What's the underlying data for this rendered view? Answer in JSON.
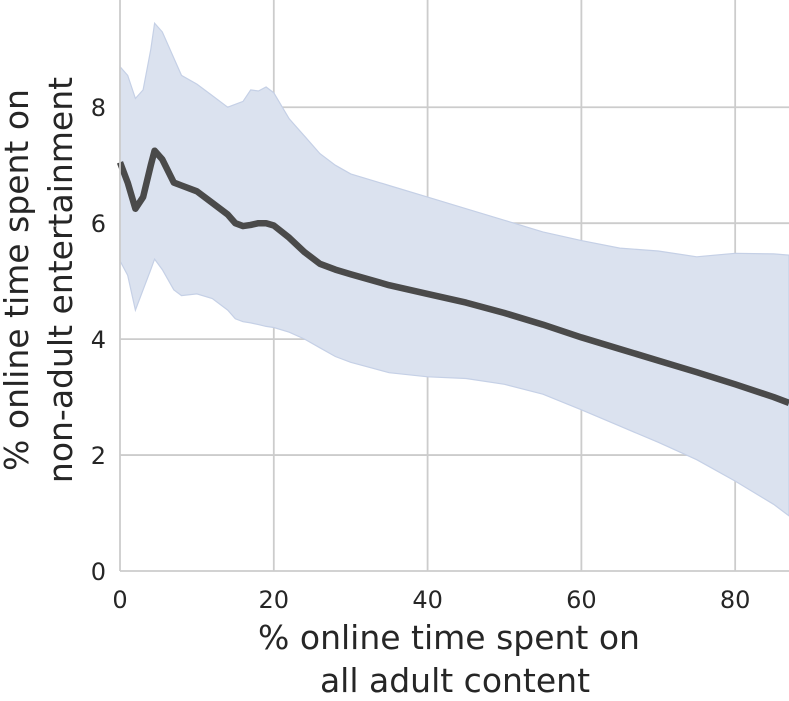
{
  "chart_data": {
    "type": "line",
    "title": "",
    "xlabel": [
      "% online time spent on",
      "all adult content"
    ],
    "ylabel": [
      "% online time spent on",
      "non-adult entertainment"
    ],
    "xlim": [
      0,
      87
    ],
    "ylim": [
      0,
      9.85
    ],
    "x_ticks": [
      "0",
      "20",
      "40",
      "60",
      "80"
    ],
    "y_ticks": [
      "0",
      "2",
      "4",
      "6",
      "8"
    ],
    "grid": true,
    "colors": {
      "line": "#4a4a4a",
      "band": "#dbe2ef",
      "band_edge": "#c5d0e6",
      "grid": "#cccccc",
      "spine": "#cccccc"
    },
    "series": [
      {
        "x": [
          0,
          1,
          2,
          3,
          4,
          4.5,
          5.5,
          7,
          8,
          10,
          12,
          14,
          15,
          16,
          17,
          18,
          19,
          20,
          22,
          24,
          26,
          28,
          30,
          35,
          40,
          45,
          50,
          55,
          60,
          65,
          70,
          75,
          80,
          85,
          87
        ],
        "y": [
          7.05,
          6.7,
          6.25,
          6.45,
          7.0,
          7.25,
          7.1,
          6.7,
          6.65,
          6.55,
          6.35,
          6.15,
          6.0,
          5.95,
          5.97,
          6.0,
          6.0,
          5.96,
          5.75,
          5.5,
          5.3,
          5.2,
          5.12,
          4.93,
          4.78,
          4.63,
          4.45,
          4.25,
          4.03,
          3.83,
          3.63,
          3.43,
          3.22,
          3.0,
          2.9
        ],
        "upper": [
          8.7,
          8.55,
          8.15,
          8.3,
          9.0,
          9.45,
          9.3,
          8.85,
          8.55,
          8.4,
          8.2,
          8.0,
          8.05,
          8.1,
          8.3,
          8.28,
          8.35,
          8.25,
          7.8,
          7.5,
          7.2,
          7.0,
          6.85,
          6.65,
          6.45,
          6.25,
          6.05,
          5.85,
          5.7,
          5.57,
          5.52,
          5.42,
          5.48,
          5.47,
          5.45
        ],
        "lower": [
          5.35,
          5.1,
          4.5,
          4.85,
          5.2,
          5.38,
          5.2,
          4.85,
          4.75,
          4.78,
          4.7,
          4.5,
          4.35,
          4.3,
          4.28,
          4.25,
          4.22,
          4.2,
          4.12,
          4.0,
          3.85,
          3.7,
          3.6,
          3.42,
          3.35,
          3.32,
          3.22,
          3.05,
          2.78,
          2.5,
          2.22,
          1.92,
          1.55,
          1.15,
          0.95
        ]
      }
    ]
  }
}
